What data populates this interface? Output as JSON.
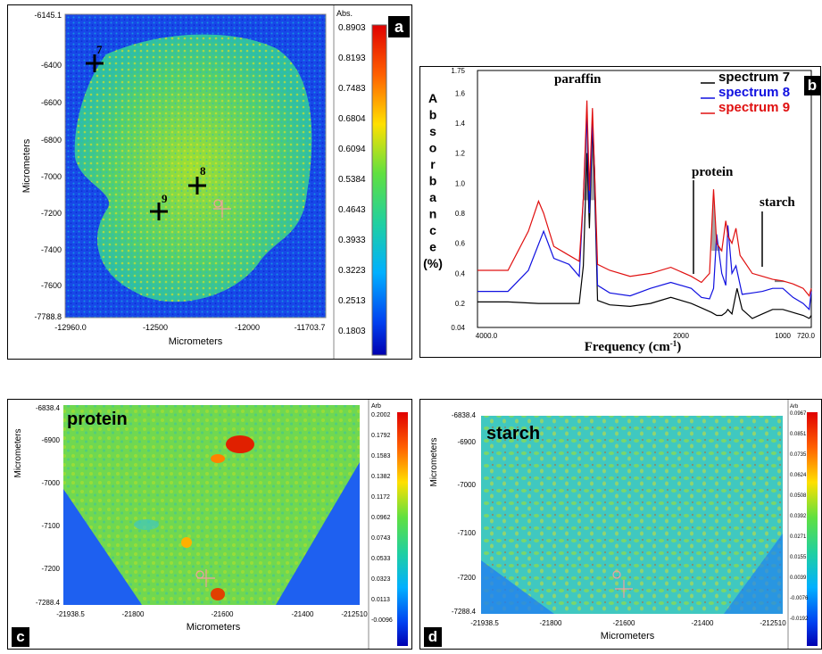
{
  "panel_a": {
    "letter": "a",
    "x_label": "Micrometers",
    "y_label": "Micrometers",
    "x_ticks": [
      "-12960.0",
      "-12500",
      "-12000",
      "-11703.7"
    ],
    "y_ticks": [
      "-6145.1",
      "-6400",
      "-6600",
      "-6800",
      "-7000",
      "-7200",
      "-7400",
      "-7600",
      "-7788.8"
    ],
    "colorbar_title": "Abs.",
    "colorbar_ticks": [
      "0.8903",
      "0.8193",
      "0.7483",
      "0.6804",
      "0.6094",
      "0.5384",
      "0.4643",
      "0.3933",
      "0.3223",
      "0.2513",
      "0.1803"
    ],
    "markers": [
      {
        "label": "7"
      },
      {
        "label": "8"
      },
      {
        "label": "9"
      }
    ]
  },
  "panel_b": {
    "letter": "b",
    "chart_data": {
      "type": "line",
      "title": "",
      "xlabel": "Frequency (cm-1)",
      "ylabel": "Absorbance (%)",
      "ylabel_letters": [
        "A",
        "b",
        "s",
        "o",
        "r",
        "b",
        "a",
        "n",
        "c",
        "e",
        "(%)"
      ],
      "xlabel_main": "Frequency (cm",
      "xlabel_sup": "-1",
      "xlabel_end": ")",
      "x_ticks": [
        "4000.0",
        "2000",
        "1000",
        "720.0"
      ],
      "y_ticks": [
        "1.75",
        "1.6",
        "1.4",
        "1.2",
        "1.0",
        "0.8",
        "0.6",
        "0.4",
        "0.2",
        "0.04"
      ],
      "xlim": [
        4000,
        720
      ],
      "ylim": [
        0.04,
        1.75
      ],
      "legend": [
        "spectrum 7",
        "spectrum 8",
        "spectrum 9"
      ],
      "annotations": [
        "paraffin",
        "protein",
        "starch"
      ],
      "series": [
        {
          "name": "spectrum 7",
          "color": "#000000",
          "x": [
            4000,
            3700,
            3400,
            3200,
            3000,
            2960,
            2925,
            2900,
            2870,
            2850,
            2820,
            2700,
            2500,
            2300,
            2100,
            1900,
            1800,
            1700,
            1650,
            1600,
            1560,
            1540,
            1500,
            1450,
            1400,
            1300,
            1200,
            1100,
            1000,
            900,
            800,
            740,
            720
          ],
          "y": [
            0.21,
            0.21,
            0.2,
            0.2,
            0.2,
            0.45,
            1.2,
            0.7,
            1.38,
            1.0,
            0.22,
            0.19,
            0.18,
            0.2,
            0.24,
            0.2,
            0.17,
            0.14,
            0.12,
            0.12,
            0.14,
            0.16,
            0.13,
            0.3,
            0.16,
            0.1,
            0.13,
            0.16,
            0.16,
            0.14,
            0.12,
            0.1,
            0.12
          ]
        },
        {
          "name": "spectrum 8",
          "color": "#1010e0",
          "x": [
            4000,
            3700,
            3500,
            3350,
            3250,
            3100,
            3000,
            2960,
            2925,
            2900,
            2870,
            2850,
            2820,
            2700,
            2500,
            2300,
            2100,
            1900,
            1800,
            1720,
            1680,
            1650,
            1600,
            1560,
            1540,
            1500,
            1460,
            1400,
            1300,
            1200,
            1100,
            1000,
            900,
            800,
            740,
            720
          ],
          "y": [
            0.28,
            0.28,
            0.42,
            0.68,
            0.5,
            0.46,
            0.38,
            0.9,
            1.45,
            0.8,
            1.42,
            1.1,
            0.32,
            0.27,
            0.25,
            0.3,
            0.34,
            0.3,
            0.24,
            0.23,
            0.3,
            0.66,
            0.4,
            0.32,
            0.72,
            0.4,
            0.45,
            0.26,
            0.27,
            0.28,
            0.3,
            0.3,
            0.24,
            0.2,
            0.16,
            0.28
          ]
        },
        {
          "name": "spectrum 9",
          "color": "#e01010",
          "x": [
            4000,
            3700,
            3500,
            3400,
            3350,
            3250,
            3100,
            3000,
            2960,
            2925,
            2900,
            2870,
            2850,
            2820,
            2700,
            2500,
            2300,
            2100,
            1900,
            1800,
            1720,
            1680,
            1650,
            1600,
            1560,
            1540,
            1500,
            1460,
            1420,
            1400,
            1300,
            1200,
            1100,
            1000,
            900,
            800,
            740,
            720
          ],
          "y": [
            0.42,
            0.42,
            0.68,
            0.88,
            0.8,
            0.58,
            0.52,
            0.48,
            0.9,
            1.55,
            0.95,
            1.5,
            1.1,
            0.46,
            0.42,
            0.38,
            0.4,
            0.44,
            0.38,
            0.34,
            0.4,
            0.96,
            0.6,
            0.55,
            0.75,
            0.65,
            0.6,
            0.7,
            0.52,
            0.5,
            0.4,
            0.38,
            0.36,
            0.35,
            0.33,
            0.3,
            0.25,
            0.3
          ]
        }
      ],
      "shaded_bands": [
        {
          "label": "paraffin",
          "x_from": 2960,
          "x_to": 2840,
          "color": "#a6a6a6"
        },
        {
          "label": "protein",
          "x_from": 1700,
          "x_to": 1600,
          "color": "#a6a6a6"
        },
        {
          "label": "starch",
          "x_from": 1080,
          "x_to": 960,
          "color": "#808080"
        }
      ]
    }
  },
  "panel_c": {
    "letter": "c",
    "title": "protein",
    "x_label": "Micrometers",
    "y_label": "Micrometers",
    "x_ticks": [
      "-21938.5",
      "-21800",
      "-21600",
      "-21400",
      "-212510"
    ],
    "y_ticks": [
      "-6838.4",
      "-6900",
      "-7000",
      "-7100",
      "-7200",
      "-7288.4"
    ],
    "colorbar_title": "Arb",
    "colorbar_ticks": [
      "0.2002",
      "0.1792",
      "0.1583",
      "0.1382",
      "0.1172",
      "0.0962",
      "0.0743",
      "0.0533",
      "0.0323",
      "0.0113",
      "-0.0096"
    ]
  },
  "panel_d": {
    "letter": "d",
    "title": "starch",
    "x_label": "Micrometers",
    "y_label": "Micrometers",
    "x_ticks": [
      "-21938.5",
      "-21800",
      "-21600",
      "-21400",
      "-212510"
    ],
    "y_ticks": [
      "-6838.4",
      "-6900",
      "-7000",
      "-7100",
      "-7200",
      "-7288.4"
    ],
    "colorbar_title": "Arb",
    "colorbar_ticks": [
      "0.0967",
      "0.0851",
      "0.0735",
      "0.0624",
      "0.0508",
      "0.0392",
      "0.0271",
      "0.0155",
      "0.0039",
      "-0.0076",
      "-0.0192"
    ]
  }
}
